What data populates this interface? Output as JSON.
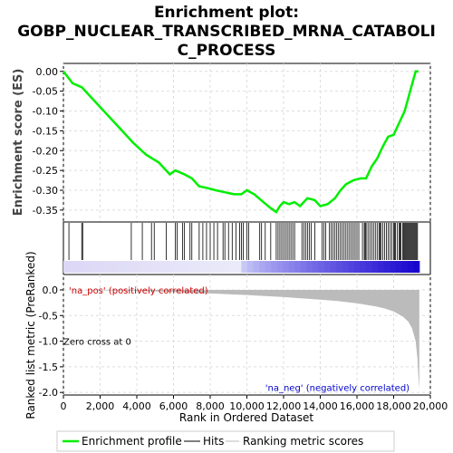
{
  "chart_data": {
    "type": "line",
    "title_lines": [
      "Enrichment plot:",
      "GOBP_NUCLEAR_TRANSCRIBED_MRNA_CATABOLI",
      "C_PROCESS"
    ],
    "top_panel": {
      "ylabel": "Enrichment score (ES)",
      "ylim": [
        -0.38,
        0.02
      ],
      "yticks": [
        "0.00",
        "-0.05",
        "-0.10",
        "-0.15",
        "-0.20",
        "-0.25",
        "-0.30",
        "-0.35"
      ],
      "ytick_values": [
        0.0,
        -0.05,
        -0.1,
        -0.15,
        -0.2,
        -0.25,
        -0.3,
        -0.35
      ],
      "color": "#00ee00",
      "es_curve": {
        "x": [
          0,
          500,
          1000,
          1200,
          2000,
          3000,
          3800,
          4500,
          5200,
          5800,
          6100,
          6600,
          7000,
          7400,
          7900,
          8300,
          8800,
          9300,
          9700,
          10000,
          10400,
          10900,
          11300,
          11600,
          11800,
          12000,
          12300,
          12600,
          12900,
          13300,
          13700,
          14000,
          14400,
          14800,
          15100,
          15400,
          15800,
          16200,
          16500,
          16800,
          17100,
          17400,
          17700,
          18000,
          18300,
          18600,
          18900,
          19200,
          19350
        ],
        "y": [
          0.0,
          -0.03,
          -0.04,
          -0.05,
          -0.09,
          -0.14,
          -0.18,
          -0.21,
          -0.23,
          -0.26,
          -0.25,
          -0.26,
          -0.27,
          -0.29,
          -0.295,
          -0.3,
          -0.305,
          -0.31,
          -0.31,
          -0.3,
          -0.31,
          -0.33,
          -0.345,
          -0.355,
          -0.34,
          -0.33,
          -0.335,
          -0.33,
          -0.34,
          -0.32,
          -0.325,
          -0.34,
          -0.335,
          -0.32,
          -0.3,
          -0.285,
          -0.275,
          -0.27,
          -0.27,
          -0.24,
          -0.22,
          -0.19,
          -0.165,
          -0.16,
          -0.13,
          -0.1,
          -0.05,
          0.0,
          0.0
        ]
      }
    },
    "hits_panel": {
      "hit_positions": [
        300,
        1000,
        1050,
        3700,
        4300,
        4800,
        4950,
        5600,
        6100,
        6200,
        6500,
        6600,
        6900,
        7000,
        7400,
        7600,
        7800,
        8000,
        8200,
        8400,
        8700,
        8800,
        9000,
        9200,
        9400,
        9600,
        9700,
        9800,
        10000,
        10100,
        10700,
        10800,
        11000,
        11300,
        11600,
        11700,
        11800,
        11900,
        12000,
        12100,
        12200,
        12300,
        12400,
        12500,
        12600,
        13000,
        13100,
        13200,
        13300,
        13400,
        13500,
        13700,
        14100,
        14200,
        14300,
        14500,
        14600,
        14700,
        14800,
        14900,
        15000,
        15100,
        15200,
        15300,
        15400,
        15500,
        15600,
        15700,
        15800,
        15900,
        16000,
        16100,
        16300,
        16400,
        16450,
        16500,
        16600,
        16700,
        16800,
        16900,
        17000,
        17100,
        17200,
        17250,
        17300,
        17400,
        17500,
        17600,
        17700,
        17800,
        17900,
        18000,
        18050,
        18100,
        18200,
        18300,
        18350,
        18400,
        18500,
        18550,
        18600,
        18650,
        18700,
        18750,
        18800,
        18850,
        18900,
        18950,
        19000,
        19050,
        19100,
        19150,
        19200,
        19250,
        19300
      ],
      "hit_color": "#000000"
    },
    "bottom_panel": {
      "ylabel": "Ranked list metric (PreRanked)",
      "ylim": [
        -2.05,
        0.3
      ],
      "yticks": [
        "0.0",
        "-0.5",
        "-1.0",
        "-1.5",
        "-2.0"
      ],
      "ytick_values": [
        0.0,
        -0.5,
        -1.0,
        -1.5,
        -2.0
      ],
      "metric_curve": {
        "x": [
          0,
          2000,
          4000,
          6000,
          8000,
          10000,
          12000,
          14000,
          15000,
          16000,
          17000,
          17500,
          18000,
          18500,
          18800,
          19000,
          19200,
          19300,
          19350,
          19400
        ],
        "y": [
          0.0,
          -0.01,
          -0.02,
          -0.04,
          -0.07,
          -0.1,
          -0.14,
          -0.19,
          -0.22,
          -0.26,
          -0.32,
          -0.36,
          -0.42,
          -0.52,
          -0.62,
          -0.75,
          -1.0,
          -1.35,
          -1.7,
          -1.95
        ]
      },
      "fill_color": "#bbbbbb",
      "annotations": [
        {
          "text": "'na_pos' (positively correlated)",
          "color": "#cc0000",
          "x": 0,
          "y": 0.0,
          "anchor": "start"
        },
        {
          "text": "Zero cross at 0",
          "color": "#000000",
          "x": 0,
          "y": -1.0,
          "anchor": "start"
        },
        {
          "text": "'na_neg' (negatively correlated)",
          "color": "#0000cc",
          "x": 11000,
          "y": -1.9,
          "anchor": "start"
        }
      ]
    },
    "xlabel": "Rank in Ordered Dataset",
    "xlim": [
      0,
      20000
    ],
    "xticks": [
      "0",
      "2,000",
      "4,000",
      "6,000",
      "8,000",
      "10,000",
      "12,000",
      "14,000",
      "16,000",
      "18,000",
      "20,000"
    ],
    "xtick_values": [
      0,
      2000,
      4000,
      6000,
      8000,
      10000,
      12000,
      14000,
      16000,
      18000,
      20000
    ],
    "dataset_size": 19400,
    "grid": true,
    "legend": {
      "placement": "bottom",
      "items": [
        {
          "label": "Enrichment profile",
          "color": "#00ee00"
        },
        {
          "label": "Hits",
          "color": "#000000"
        },
        {
          "label": "Ranking metric scores",
          "color": "#bbbbbb"
        }
      ]
    }
  }
}
